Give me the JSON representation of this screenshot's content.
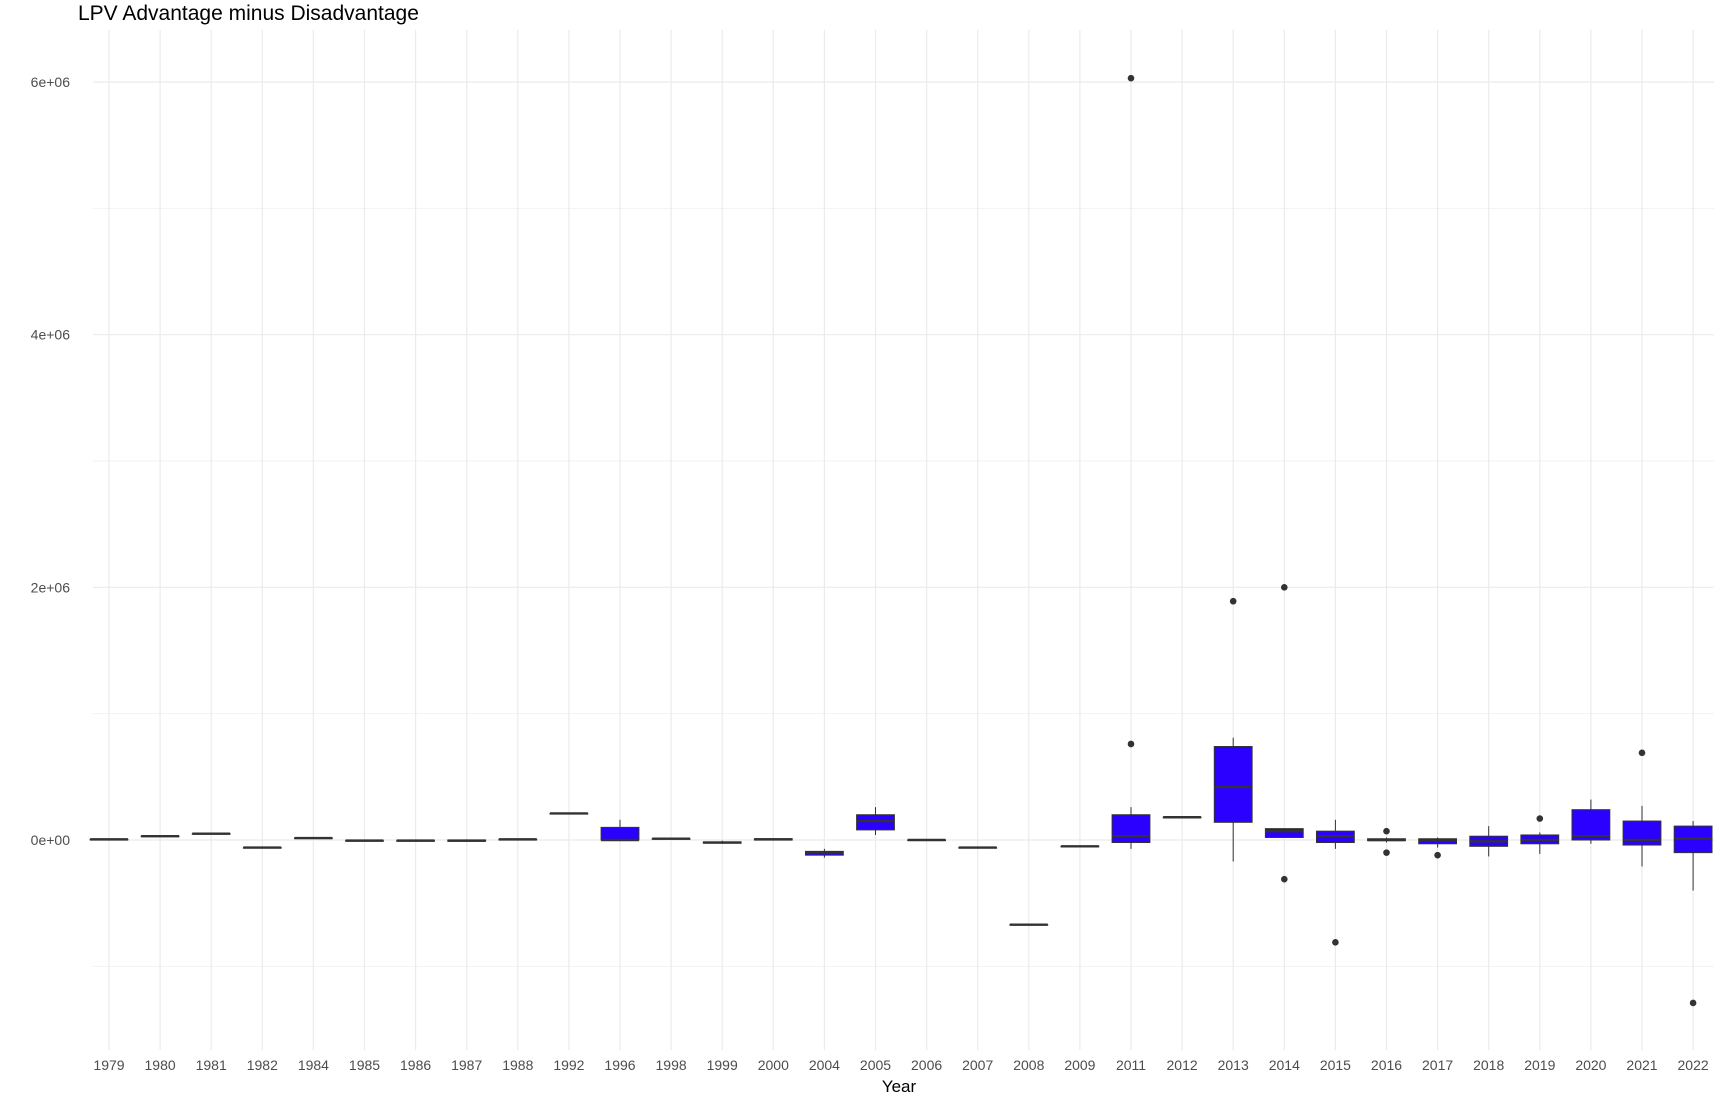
{
  "chart_data": {
    "type": "boxplot",
    "title": "LPV Advantage minus Disadvantage",
    "xlabel": "Year",
    "ylabel": "",
    "ylim": [
      -1700000,
      6400000
    ],
    "y_ticks": [
      0,
      2000000,
      4000000,
      6000000
    ],
    "y_tick_labels": [
      "0e+00",
      "2e+06",
      "4e+06",
      "6e+06"
    ],
    "grid": true,
    "fill_color": "#2b00ff",
    "line_color": "#333333",
    "categories": [
      "1979",
      "1980",
      "1981",
      "1982",
      "1984",
      "1985",
      "1986",
      "1987",
      "1988",
      "1992",
      "1996",
      "1998",
      "1999",
      "2000",
      "2004",
      "2005",
      "2006",
      "2007",
      "2008",
      "2009",
      "2011",
      "2012",
      "2013",
      "2014",
      "2015",
      "2016",
      "2017",
      "2018",
      "2019",
      "2020",
      "2021",
      "2022"
    ],
    "boxes": [
      {
        "min": 5000,
        "q1": 5000,
        "median": 5000,
        "q3": 5000,
        "max": 5000,
        "outliers": []
      },
      {
        "min": 30000,
        "q1": 30000,
        "median": 30000,
        "q3": 30000,
        "max": 30000,
        "outliers": []
      },
      {
        "min": 50000,
        "q1": 50000,
        "median": 50000,
        "q3": 50000,
        "max": 50000,
        "outliers": []
      },
      {
        "min": -60000,
        "q1": -60000,
        "median": -60000,
        "q3": -60000,
        "max": -60000,
        "outliers": []
      },
      {
        "min": 15000,
        "q1": 15000,
        "median": 15000,
        "q3": 15000,
        "max": 15000,
        "outliers": []
      },
      {
        "min": -5000,
        "q1": -5000,
        "median": -5000,
        "q3": -5000,
        "max": -5000,
        "outliers": []
      },
      {
        "min": -5000,
        "q1": -5000,
        "median": -5000,
        "q3": -5000,
        "max": -5000,
        "outliers": []
      },
      {
        "min": -15000,
        "q1": -10000,
        "median": -5000,
        "q3": 0,
        "max": 5000,
        "outliers": []
      },
      {
        "min": 5000,
        "q1": 5000,
        "median": 5000,
        "q3": 5000,
        "max": 5000,
        "outliers": []
      },
      {
        "min": 210000,
        "q1": 210000,
        "median": 210000,
        "q3": 210000,
        "max": 210000,
        "outliers": []
      },
      {
        "min": 0,
        "q1": 0,
        "median": 0,
        "q3": 100000,
        "max": 160000,
        "outliers": []
      },
      {
        "min": 10000,
        "q1": 10000,
        "median": 10000,
        "q3": 10000,
        "max": 10000,
        "outliers": []
      },
      {
        "min": -30000,
        "q1": -25000,
        "median": -20000,
        "q3": -15000,
        "max": -5000,
        "outliers": []
      },
      {
        "min": 0,
        "q1": 0,
        "median": 5000,
        "q3": 10000,
        "max": 15000,
        "outliers": []
      },
      {
        "min": -140000,
        "q1": -120000,
        "median": -100000,
        "q3": -90000,
        "max": -70000,
        "outliers": []
      },
      {
        "min": 40000,
        "q1": 80000,
        "median": 150000,
        "q3": 200000,
        "max": 260000,
        "outliers": []
      },
      {
        "min": 0,
        "q1": 0,
        "median": 0,
        "q3": 0,
        "max": 0,
        "outliers": []
      },
      {
        "min": -60000,
        "q1": -60000,
        "median": -60000,
        "q3": -60000,
        "max": -60000,
        "outliers": []
      },
      {
        "min": -670000,
        "q1": -670000,
        "median": -670000,
        "q3": -670000,
        "max": -670000,
        "outliers": []
      },
      {
        "min": -50000,
        "q1": -50000,
        "median": -50000,
        "q3": -50000,
        "max": -50000,
        "outliers": []
      },
      {
        "min": -70000,
        "q1": -20000,
        "median": 30000,
        "q3": 200000,
        "max": 260000,
        "outliers": [
          760000,
          6030000
        ]
      },
      {
        "min": 180000,
        "q1": 180000,
        "median": 180000,
        "q3": 180000,
        "max": 180000,
        "outliers": []
      },
      {
        "min": -170000,
        "q1": 140000,
        "median": 420000,
        "q3": 740000,
        "max": 810000,
        "outliers": [
          1890000
        ]
      },
      {
        "min": 20000,
        "q1": 20000,
        "median": 70000,
        "q3": 90000,
        "max": 90000,
        "outliers": [
          2000000,
          -310000
        ]
      },
      {
        "min": -70000,
        "q1": -20000,
        "median": 30000,
        "q3": 70000,
        "max": 160000,
        "outliers": [
          -810000
        ]
      },
      {
        "min": -20000,
        "q1": -5000,
        "median": 0,
        "q3": 10000,
        "max": 20000,
        "outliers": [
          70000,
          -100000
        ]
      },
      {
        "min": -60000,
        "q1": -30000,
        "median": -5000,
        "q3": 10000,
        "max": 20000,
        "outliers": [
          -120000
        ]
      },
      {
        "min": -130000,
        "q1": -50000,
        "median": -10000,
        "q3": 30000,
        "max": 110000,
        "outliers": []
      },
      {
        "min": -110000,
        "q1": -30000,
        "median": 0,
        "q3": 40000,
        "max": 60000,
        "outliers": [
          170000
        ]
      },
      {
        "min": -30000,
        "q1": 0,
        "median": 30000,
        "q3": 240000,
        "max": 320000,
        "outliers": []
      },
      {
        "min": -210000,
        "q1": -40000,
        "median": 0,
        "q3": 150000,
        "max": 270000,
        "outliers": [
          690000
        ]
      },
      {
        "min": -400000,
        "q1": -100000,
        "median": 10000,
        "q3": 110000,
        "max": 150000,
        "outliers": [
          -1290000
        ]
      }
    ]
  }
}
